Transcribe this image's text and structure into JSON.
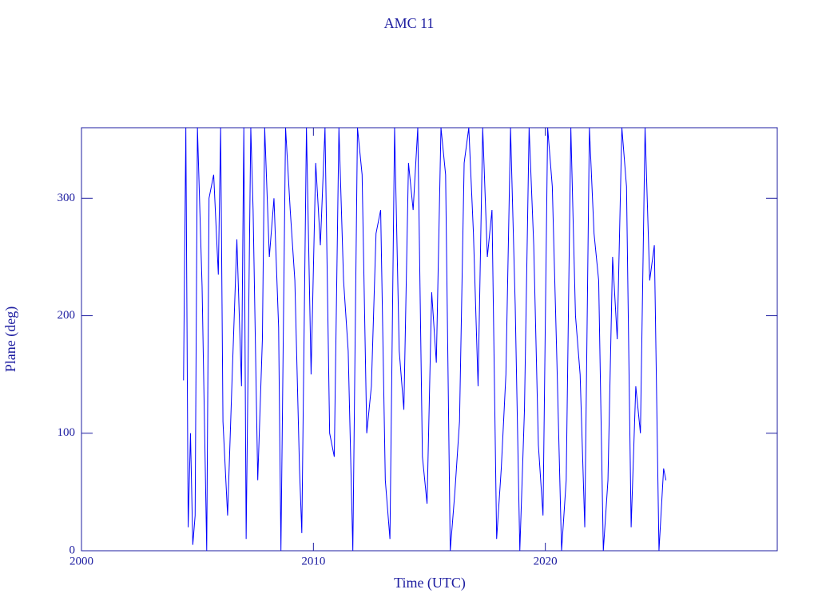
{
  "chart_data": {
    "type": "line",
    "title": "AMC 11",
    "x_label": "Time (UTC)",
    "y_label": "Plane (deg)",
    "color": "#0000ff",
    "axis_color": "#1c1ca0",
    "xlim": [
      2000,
      2030
    ],
    "ylim": [
      0,
      360
    ],
    "xticks": [
      2000,
      2010,
      2020
    ],
    "yticks": [
      0,
      100,
      200,
      300
    ],
    "x": [
      2004.4,
      2004.5,
      2004.6,
      2004.7,
      2004.8,
      2004.9,
      2005.0,
      2005.2,
      2005.4,
      2005.5,
      2005.7,
      2005.9,
      2006.0,
      2006.1,
      2006.3,
      2006.5,
      2006.7,
      2006.9,
      2007.0,
      2007.1,
      2007.3,
      2007.4,
      2007.6,
      2007.8,
      2007.9,
      2008.1,
      2008.3,
      2008.5,
      2008.6,
      2008.8,
      2009.0,
      2009.2,
      2009.4,
      2009.5,
      2009.7,
      2009.9,
      2010.1,
      2010.3,
      2010.5,
      2010.7,
      2010.9,
      2011.1,
      2011.3,
      2011.5,
      2011.7,
      2011.9,
      2012.1,
      2012.3,
      2012.5,
      2012.7,
      2012.9,
      2013.1,
      2013.3,
      2013.5,
      2013.7,
      2013.9,
      2014.1,
      2014.3,
      2014.5,
      2014.7,
      2014.9,
      2015.1,
      2015.3,
      2015.5,
      2015.7,
      2015.9,
      2016.1,
      2016.3,
      2016.5,
      2016.7,
      2016.9,
      2017.1,
      2017.3,
      2017.5,
      2017.7,
      2017.9,
      2018.1,
      2018.3,
      2018.5,
      2018.7,
      2018.9,
      2019.1,
      2019.3,
      2019.5,
      2019.7,
      2019.9,
      2020.1,
      2020.3,
      2020.5,
      2020.7,
      2020.9,
      2021.1,
      2021.3,
      2021.5,
      2021.7,
      2021.9,
      2022.1,
      2022.3,
      2022.5,
      2022.7,
      2022.9,
      2023.1,
      2023.3,
      2023.5,
      2023.7,
      2023.9,
      2024.1,
      2024.3,
      2024.5,
      2024.7,
      2024.9,
      2025.1,
      2025.2
    ],
    "values": [
      145,
      360,
      20,
      100,
      5,
      30,
      360,
      225,
      0,
      300,
      320,
      235,
      360,
      110,
      30,
      150,
      265,
      140,
      360,
      10,
      360,
      290,
      60,
      180,
      360,
      250,
      300,
      190,
      0,
      360,
      290,
      230,
      70,
      15,
      360,
      150,
      330,
      260,
      360,
      100,
      80,
      360,
      230,
      170,
      0,
      360,
      320,
      100,
      140,
      270,
      290,
      60,
      10,
      360,
      170,
      120,
      330,
      290,
      360,
      80,
      40,
      220,
      160,
      360,
      320,
      0,
      50,
      110,
      330,
      360,
      270,
      140,
      360,
      250,
      290,
      10,
      70,
      150,
      360,
      210,
      0,
      120,
      360,
      260,
      90,
      30,
      360,
      310,
      160,
      0,
      60,
      360,
      200,
      150,
      20,
      360,
      270,
      230,
      0,
      60,
      250,
      180,
      360,
      310,
      20,
      140,
      100,
      360,
      230,
      260,
      0,
      70,
      60
    ]
  }
}
